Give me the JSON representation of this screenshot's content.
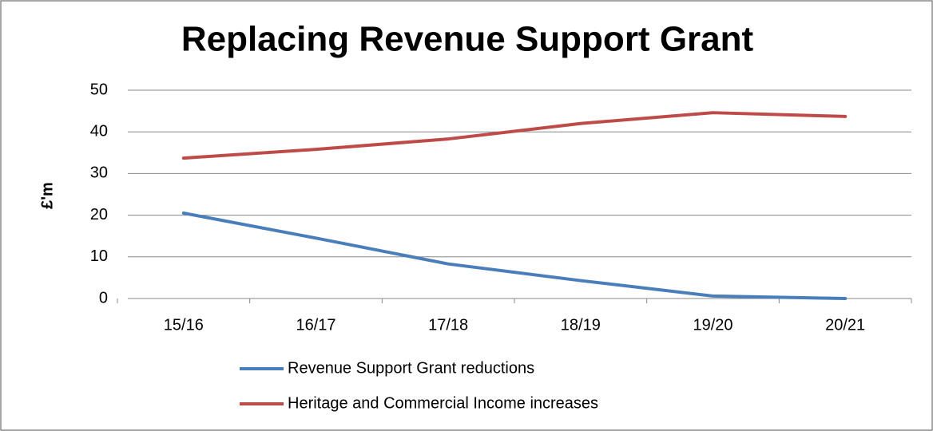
{
  "chart_data": {
    "type": "line",
    "title": "Replacing Revenue Support Grant",
    "y_label": "£'m",
    "categories": [
      "15/16",
      "16/17",
      "17/18",
      "18/19",
      "19/20",
      "20/21"
    ],
    "series": [
      {
        "name": "Revenue Support Grant reductions",
        "color": "#4a7ebb",
        "values": [
          20.5,
          14.5,
          8.3,
          4.3,
          0.6,
          0
        ]
      },
      {
        "name": "Heritage and Commercial Income increases",
        "color": "#be4b48",
        "values": [
          33.7,
          35.8,
          38.3,
          42,
          44.6,
          43.7
        ]
      }
    ],
    "ylim": [
      0,
      50
    ],
    "yticks": [
      0,
      10,
      20,
      30,
      40,
      50
    ],
    "grid": true,
    "legend": "bottom"
  }
}
